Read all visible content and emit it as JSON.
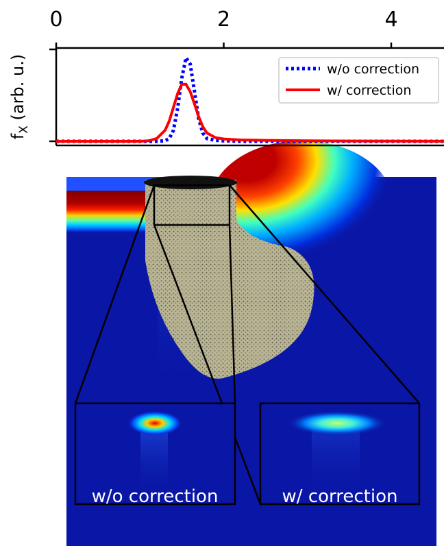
{
  "chart_data": {
    "type": "line",
    "ylabel": [
      "f",
      "X",
      " (arb. u.)"
    ],
    "x": [
      0,
      0.5,
      1.0,
      1.1,
      1.2,
      1.3,
      1.35,
      1.4,
      1.45,
      1.5,
      1.55,
      1.6,
      1.65,
      1.7,
      1.75,
      1.8,
      1.9,
      2.0,
      2.2,
      2.5,
      3.0,
      3.5,
      4.0,
      4.63
    ],
    "series": [
      {
        "name": "w/o correction",
        "color": "#0000ff",
        "style": "dotted",
        "values": [
          0,
          0,
          0,
          0,
          0,
          0.005,
          0.03,
          0.12,
          0.36,
          0.69,
          0.91,
          0.84,
          0.55,
          0.25,
          0.09,
          0.03,
          0.01,
          0.005,
          0,
          0,
          0,
          0,
          0,
          0
        ]
      },
      {
        "name": "w/ correction",
        "color": "#ff0000",
        "style": "solid",
        "values": [
          0,
          0,
          0,
          0.005,
          0.03,
          0.12,
          0.22,
          0.37,
          0.52,
          0.62,
          0.62,
          0.54,
          0.41,
          0.27,
          0.16,
          0.09,
          0.04,
          0.025,
          0.015,
          0.01,
          0.005,
          0.003,
          0.002,
          0.001
        ]
      }
    ],
    "xlim": [
      0,
      4.63
    ],
    "xticks": [
      0,
      2,
      4
    ],
    "ylim": [
      -0.045,
      1.015
    ],
    "yticks": [
      0,
      1
    ],
    "legend": "upper right",
    "annotations": [
      "w/o correction",
      "w/ correction"
    ]
  }
}
